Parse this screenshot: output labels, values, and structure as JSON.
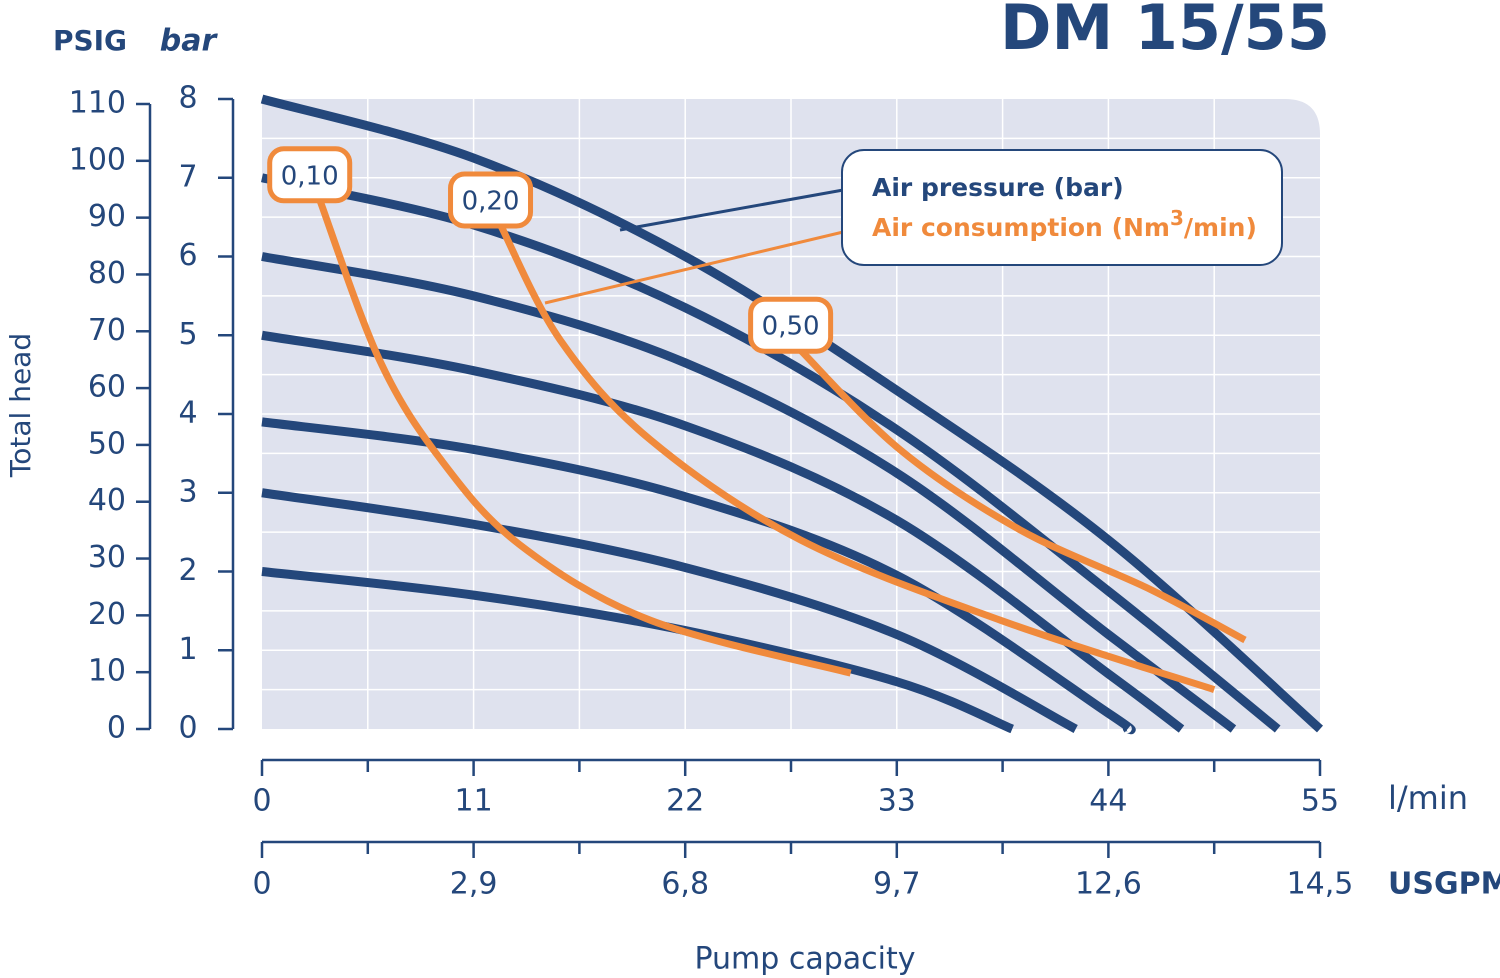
{
  "chart_data": {
    "type": "line",
    "title": "DM 15/55",
    "y_label": "Total head",
    "x_label": "Pump capacity",
    "x_unit": "l/min",
    "x2_unit": "USGPM",
    "y_unit": "bar",
    "y2_unit": "PSIG",
    "xlim": [
      0,
      55
    ],
    "xticks": [
      0,
      11,
      22,
      33,
      44,
      55
    ],
    "minor_xticks": [
      5.5,
      16.5,
      27.5,
      38.5,
      49.5
    ],
    "x2ticks": [
      0,
      {
        "value": 2.9,
        "label": "2,9"
      },
      {
        "value": 6.8,
        "label": "6,8"
      },
      {
        "value": 9.7,
        "label": "9,7"
      },
      {
        "value": 12.6,
        "label": "12,6"
      },
      {
        "value": 14.5,
        "label": "14,5"
      }
    ],
    "ylim": [
      0,
      8
    ],
    "yticks": [
      0,
      1,
      2,
      3,
      4,
      5,
      6,
      7,
      8
    ],
    "minor_yticks": [
      0.5,
      1.5,
      2.5,
      3.5,
      4.5,
      5.5,
      6.5,
      7.5
    ],
    "y2lim": [
      0,
      110
    ],
    "y2ticks": [
      0,
      10,
      20,
      30,
      40,
      50,
      60,
      70,
      80,
      90,
      100,
      110
    ],
    "grid": true,
    "series": [
      {
        "name": "Air pressure (bar)",
        "color": "#24477b",
        "curves": [
          {
            "x": [
              0,
              11,
              22,
              33,
              44,
              55
            ],
            "values": [
              8,
              7.25,
              6.0,
              4.3,
              2.4,
              0
            ]
          },
          {
            "x": [
              0,
              11,
              22,
              33,
              44,
              52.8
            ],
            "values": [
              7,
              6.4,
              5.35,
              3.8,
              1.75,
              0
            ]
          },
          {
            "x": [
              0,
              11,
              22,
              33,
              44,
              50.5
            ],
            "values": [
              6,
              5.5,
              4.65,
              3.25,
              1.2,
              0
            ]
          },
          {
            "x": [
              0,
              11,
              22,
              33,
              44,
              47.8
            ],
            "values": [
              5,
              4.55,
              3.85,
              2.65,
              0.7,
              0
            ]
          },
          {
            "x": [
              0,
              11,
              22,
              33,
              44,
              45
            ],
            "values": [
              3.9,
              3.55,
              2.95,
              1.95,
              0.2,
              0
            ]
          },
          {
            "x": [
              0,
              11,
              22,
              33,
              42.3
            ],
            "values": [
              3.0,
              2.6,
              2.05,
              1.2,
              0
            ]
          },
          {
            "x": [
              0,
              11,
              22,
              33,
              39
            ],
            "values": [
              2.0,
              1.7,
              1.25,
              0.6,
              0
            ]
          }
        ]
      },
      {
        "name": [
          "Air consumption (Nm",
          "3",
          "/min)"
        ],
        "color": "#f08a3c",
        "curves": [
          {
            "name": "0,10",
            "x": [
              3.0,
              6.1,
              9.3,
              13.4,
              20.2,
              30.6
            ],
            "values": [
              6.72,
              4.69,
              3.42,
              2.34,
              1.38,
              0.71
            ]
          },
          {
            "name": "0,20",
            "x": [
              12.4,
              15.5,
              20.2,
              28.0,
              38.4,
              49.5
            ],
            "values": [
              6.4,
              4.94,
              3.67,
              2.4,
              1.38,
              0.5
            ]
          },
          {
            "name": "0,50",
            "x": [
              28.0,
              33.2,
              39.4,
              46.2,
              51.1
            ],
            "values": [
              4.81,
              3.54,
              2.53,
              1.77,
              1.13
            ]
          }
        ]
      }
    ]
  }
}
